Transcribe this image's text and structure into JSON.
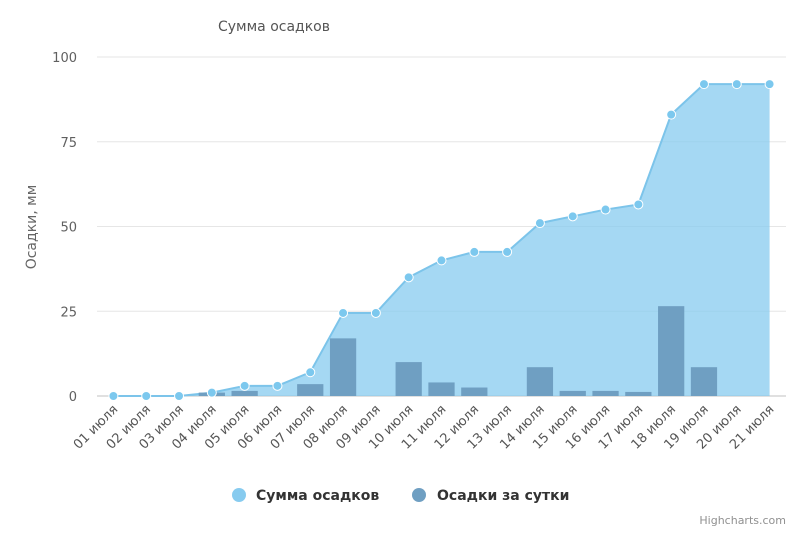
{
  "chart_data": {
    "type": "area",
    "title": "Сумма осадков",
    "xlabel": "",
    "ylabel": "Осадки, мм",
    "ylim": [
      0,
      100
    ],
    "yticks": [
      0,
      25,
      50,
      75,
      100
    ],
    "grid": true,
    "legend_position": "bottom-center",
    "categories": [
      "01 июля",
      "02 июля",
      "03 июля",
      "04 июля",
      "05 июля",
      "06 июля",
      "07 июля",
      "08 июля",
      "09 июля",
      "10 июля",
      "11 июля",
      "12 июля",
      "13 июля",
      "14 июля",
      "15 июля",
      "16 июля",
      "17 июля",
      "18 июля",
      "19 июля",
      "20 июля",
      "21 июля"
    ],
    "series": [
      {
        "name": "Сумма осадков",
        "type": "area",
        "color": "#87cbef",
        "values": [
          0,
          0,
          0,
          1,
          3,
          3,
          7,
          24.5,
          24.5,
          35,
          40,
          42.5,
          42.5,
          51,
          53,
          55,
          56.5,
          83,
          92,
          92,
          92
        ]
      },
      {
        "name": "Осадки за сутки",
        "type": "bar",
        "color": "#6f9fc2",
        "values": [
          0,
          0,
          0,
          1,
          1.5,
          0,
          3.5,
          17,
          0,
          10,
          4,
          2.5,
          0,
          8.5,
          1.5,
          1.5,
          1.2,
          26.5,
          8.5,
          0,
          0
        ]
      }
    ],
    "credits": "Highcharts.com"
  }
}
